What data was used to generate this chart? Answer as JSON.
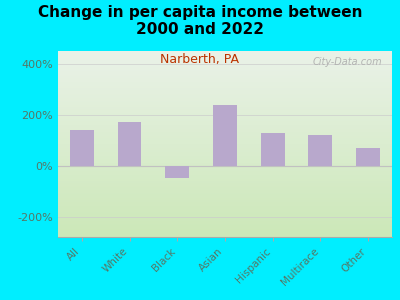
{
  "title": "Change in per capita income between\n2000 and 2022",
  "subtitle": "Narberth, PA",
  "categories": [
    "All",
    "White",
    "Black",
    "Asian",
    "Hispanic",
    "Multirace",
    "Other"
  ],
  "values": [
    140,
    170,
    -50,
    240,
    130,
    120,
    70
  ],
  "bar_color": "#b8a8cc",
  "background_outer": "#00eeff",
  "background_inner_top": "#eaf2e8",
  "background_inner_bottom": "#cce8b8",
  "title_color": "#000000",
  "subtitle_color": "#bb3300",
  "tick_color": "#557766",
  "ytick_label_color": "#557766",
  "ylim": [
    -280,
    450
  ],
  "yticks": [
    -200,
    0,
    200,
    400
  ],
  "ytick_labels": [
    "-200%",
    "0%",
    "200%",
    "400%"
  ],
  "watermark": "City-Data.com",
  "title_fontsize": 11,
  "subtitle_fontsize": 9,
  "tick_fontsize": 8,
  "xtick_fontsize": 7.5
}
